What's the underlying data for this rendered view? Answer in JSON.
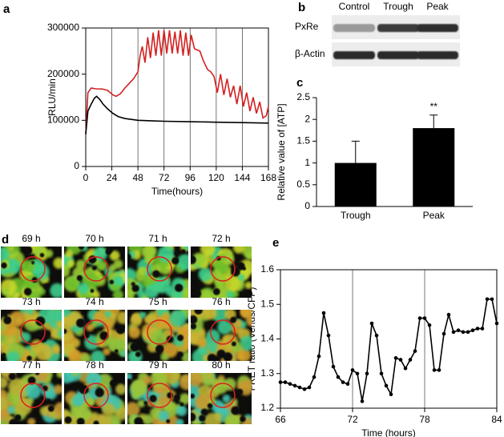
{
  "chart_data": [
    {
      "panel": "a",
      "type": "line",
      "ylabel": "RLU/min",
      "xlabel": "Time(hours)",
      "xlim": [
        0,
        168
      ],
      "xticks": [
        0,
        24,
        48,
        72,
        96,
        120,
        144,
        168
      ],
      "ylim": [
        0,
        300000
      ],
      "yticks": [
        0,
        100000,
        200000,
        300000
      ],
      "xgrid": true,
      "series": [
        {
          "color": "#d42020",
          "x": [
            0,
            2,
            5,
            10,
            15,
            20,
            25,
            28,
            32,
            36,
            40,
            44,
            48,
            50,
            52,
            54.5,
            57,
            59.5,
            62,
            64.5,
            67,
            69.5,
            72,
            74.5,
            77,
            79.5,
            82,
            84.5,
            87,
            89.5,
            92,
            94.5,
            97,
            100,
            105,
            108,
            112,
            115,
            118,
            121,
            124,
            127,
            130,
            133,
            136,
            139,
            142,
            145,
            148,
            151,
            154,
            157,
            160,
            163,
            166,
            168
          ],
          "values": [
            70000,
            160000,
            170000,
            168000,
            168000,
            165000,
            155000,
            152000,
            158000,
            170000,
            180000,
            190000,
            205000,
            240000,
            260000,
            225000,
            280000,
            235000,
            290000,
            240000,
            295000,
            240000,
            295000,
            245000,
            295000,
            245000,
            292000,
            245000,
            295000,
            240000,
            290000,
            240000,
            285000,
            255000,
            250000,
            230000,
            210000,
            205000,
            195000,
            160000,
            200000,
            155000,
            190000,
            150000,
            175000,
            135000,
            175000,
            130000,
            160000,
            120000,
            150000,
            115000,
            140000,
            105000,
            110000,
            130000
          ]
        },
        {
          "color": "#000000",
          "x": [
            0,
            2,
            5,
            8,
            10,
            13,
            16,
            20,
            25,
            30,
            36,
            42,
            48,
            60,
            72,
            96,
            120,
            144,
            168
          ],
          "values": [
            70000,
            120000,
            135000,
            148000,
            152000,
            145000,
            135000,
            125000,
            115000,
            108000,
            104000,
            102000,
            100000,
            99000,
            98000,
            97000,
            96000,
            95000,
            94000
          ]
        }
      ]
    },
    {
      "panel": "c",
      "type": "bar",
      "ylabel": "Relative value of [ATP]",
      "categories": [
        "Trough",
        "Peak"
      ],
      "values": [
        1,
        1.8
      ],
      "errors": [
        0.5,
        0.3
      ],
      "annotations": [
        null,
        "**"
      ],
      "color": "#000000",
      "ylim": [
        0,
        2.5
      ],
      "yticks": [
        0,
        0.5,
        1,
        1.5,
        2,
        2.5
      ]
    },
    {
      "panel": "e",
      "type": "line",
      "ylabel": "FRET ratio (Venus/CFP)",
      "xlabel": "Time (hours)",
      "xlim": [
        66,
        84
      ],
      "xticks": [
        66,
        72,
        78,
        84
      ],
      "ylim": [
        1.2,
        1.6
      ],
      "yticks": [
        1.2,
        1.3,
        1.4,
        1.5,
        1.6
      ],
      "xgrid": true,
      "markers": true,
      "series": [
        {
          "color": "#000000",
          "x": [
            66,
            66.4,
            66.8,
            67.2,
            67.6,
            68,
            68.4,
            68.8,
            69.2,
            69.6,
            70,
            70.4,
            70.8,
            71.2,
            71.6,
            72,
            72.4,
            72.8,
            73.2,
            73.6,
            74,
            74.4,
            74.8,
            75.2,
            75.6,
            76,
            76.4,
            76.8,
            77.2,
            77.6,
            78,
            78.4,
            78.8,
            79.2,
            79.6,
            80,
            80.4,
            80.8,
            81.2,
            81.6,
            82,
            82.4,
            82.8,
            83.2,
            83.6,
            84
          ],
          "values": [
            1.275,
            1.275,
            1.27,
            1.265,
            1.26,
            1.255,
            1.26,
            1.29,
            1.35,
            1.475,
            1.41,
            1.32,
            1.29,
            1.275,
            1.27,
            1.31,
            1.3,
            1.22,
            1.3,
            1.445,
            1.41,
            1.3,
            1.265,
            1.24,
            1.345,
            1.34,
            1.315,
            1.34,
            1.365,
            1.46,
            1.46,
            1.44,
            1.31,
            1.31,
            1.415,
            1.47,
            1.42,
            1.425,
            1.42,
            1.42,
            1.425,
            1.43,
            1.43,
            1.515,
            1.515,
            1.445
          ]
        }
      ]
    }
  ],
  "blot": {
    "panel": "b",
    "lanes": [
      "Control",
      "Trough",
      "Peak"
    ],
    "rows": [
      "PxRe",
      "β-Actin"
    ]
  },
  "timelapse": {
    "panel": "d",
    "frames": [
      "69 h",
      "70 h",
      "71 h",
      "72 h",
      "73 h",
      "74 h",
      "75 h",
      "76 h",
      "77 h",
      "78 h",
      "79 h",
      "80 h"
    ]
  }
}
